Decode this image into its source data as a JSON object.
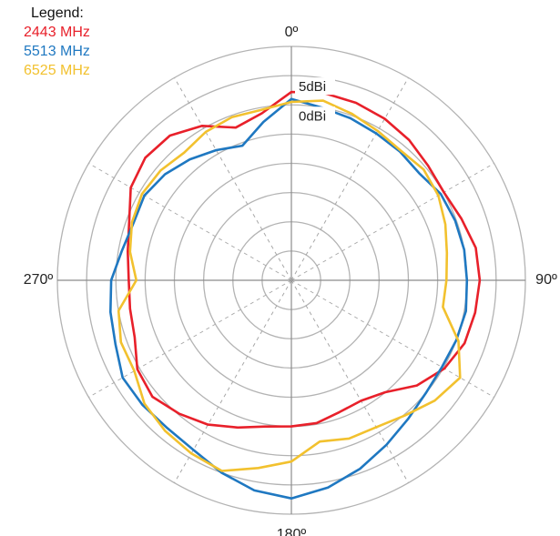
{
  "chart_data": {
    "type": "polar-line",
    "title": "",
    "legend": {
      "title": "Legend:",
      "placement": "top-left",
      "entries": [
        {
          "label": "2443 MHz",
          "color": "#e8202a"
        },
        {
          "label": "5513 MHz",
          "color": "#1f78c1"
        },
        {
          "label": "6525 MHz",
          "color": "#f2c12e"
        }
      ]
    },
    "angle_labels": [
      {
        "angle": 0,
        "text": "0º"
      },
      {
        "angle": 90,
        "text": "90º"
      },
      {
        "angle": 180,
        "text": "180º"
      },
      {
        "angle": 270,
        "text": "270º"
      }
    ],
    "ring_labels": [
      {
        "value": 5,
        "text": "5dBi"
      },
      {
        "value": 0,
        "text": "0dBi"
      }
    ],
    "radial_unit": "dBi",
    "radial_range": [
      -30,
      10
    ],
    "ring_step": 5,
    "spoke_step_deg": 30,
    "grid": true,
    "series": [
      {
        "name": "2443 MHz",
        "color": "#e8202a",
        "points": [
          [
            0,
            2.2
          ],
          [
            10,
            2.5
          ],
          [
            20,
            2.3
          ],
          [
            30,
            1.9
          ],
          [
            40,
            1.3
          ],
          [
            50,
            0.5
          ],
          [
            60,
            0.1
          ],
          [
            70,
            0.9
          ],
          [
            80,
            2
          ],
          [
            90,
            2.2
          ],
          [
            100,
            1.9
          ],
          [
            110,
            1.5
          ],
          [
            120,
            0.2
          ],
          [
            130,
            -2
          ],
          [
            140,
            -5
          ],
          [
            150,
            -6.2
          ],
          [
            160,
            -6
          ],
          [
            170,
            -5.2
          ],
          [
            180,
            -5
          ],
          [
            190,
            -4.6
          ],
          [
            200,
            -3.2
          ],
          [
            210,
            -1.5
          ],
          [
            220,
            -0.2
          ],
          [
            230,
            1
          ],
          [
            240,
            0.4
          ],
          [
            250,
            -1.5
          ],
          [
            260,
            -2
          ],
          [
            270,
            -2.2
          ],
          [
            280,
            -1.6
          ],
          [
            290,
            -0.5
          ],
          [
            300,
            1.7
          ],
          [
            310,
            2.6
          ],
          [
            320,
            2.3
          ],
          [
            330,
            0.5
          ],
          [
            340,
            -2.2
          ],
          [
            350,
            -1
          ]
        ]
      },
      {
        "name": "5513 MHz",
        "color": "#1f78c1",
        "points": [
          [
            0,
            1
          ],
          [
            10,
            0
          ],
          [
            20,
            -0.5
          ],
          [
            30,
            -1
          ],
          [
            40,
            -1.2
          ],
          [
            50,
            -1.5
          ],
          [
            60,
            -0.5
          ],
          [
            70,
            -0.2
          ],
          [
            80,
            0
          ],
          [
            90,
            0
          ],
          [
            100,
            0.3
          ],
          [
            110,
            0
          ],
          [
            120,
            -0.3
          ],
          [
            130,
            0
          ],
          [
            140,
            1
          ],
          [
            150,
            2.5
          ],
          [
            160,
            4.3
          ],
          [
            170,
            6
          ],
          [
            180,
            7.3
          ],
          [
            190,
            6.5
          ],
          [
            200,
            5
          ],
          [
            210,
            3.5
          ],
          [
            220,
            3
          ],
          [
            230,
            3.2
          ],
          [
            240,
            3.3
          ],
          [
            250,
            2
          ],
          [
            260,
            1.4
          ],
          [
            270,
            0.8
          ],
          [
            280,
            -0.6
          ],
          [
            290,
            -1.3
          ],
          [
            300,
            -1
          ],
          [
            310,
            -1.8
          ],
          [
            320,
            -3
          ],
          [
            330,
            -4.3
          ],
          [
            340,
            -5.5
          ],
          [
            350,
            -2.5
          ]
        ]
      },
      {
        "name": "6525 MHz",
        "color": "#f2c12e",
        "points": [
          [
            0,
            0.5
          ],
          [
            10,
            1.2
          ],
          [
            20,
            0.3
          ],
          [
            30,
            -0.5
          ],
          [
            40,
            -1
          ],
          [
            50,
            -0.5
          ],
          [
            60,
            -1
          ],
          [
            70,
            -2
          ],
          [
            80,
            -3
          ],
          [
            90,
            -3.5
          ],
          [
            100,
            -3.7
          ],
          [
            110,
            0.4
          ],
          [
            120,
            3.3
          ],
          [
            130,
            2
          ],
          [
            140,
            0.2
          ],
          [
            150,
            -1
          ],
          [
            160,
            -1.2
          ],
          [
            170,
            -2
          ],
          [
            180,
            1
          ],
          [
            190,
            2.6
          ],
          [
            200,
            4.7
          ],
          [
            210,
            4.2
          ],
          [
            220,
            3.6
          ],
          [
            230,
            2.8
          ],
          [
            240,
            1
          ],
          [
            250,
            1
          ],
          [
            260,
            0
          ],
          [
            270,
            -3.5
          ],
          [
            280,
            -2
          ],
          [
            290,
            -1
          ],
          [
            300,
            -0.5
          ],
          [
            310,
            -0.8
          ],
          [
            320,
            -1.5
          ],
          [
            330,
            -0.7
          ],
          [
            340,
            -0.3
          ],
          [
            350,
            -0.4
          ]
        ]
      }
    ]
  }
}
